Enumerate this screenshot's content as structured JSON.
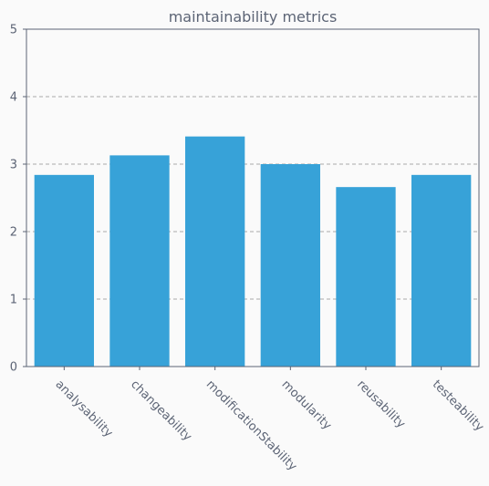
{
  "chart_data": {
    "type": "bar",
    "title": "maintainability metrics",
    "xlabel": "",
    "ylabel": "",
    "categories": [
      "analysability",
      "changeability",
      "modificationStability",
      "modularity",
      "reusability",
      "testeability"
    ],
    "values": [
      2.84,
      3.13,
      3.41,
      3.0,
      2.66,
      2.84
    ],
    "ylim": [
      0,
      5
    ],
    "yticks": [
      "0",
      "1",
      "2",
      "3",
      "4",
      "5"
    ],
    "grid": "horizontal-dashed",
    "legend": "none",
    "bar_color": "#37a2d8",
    "grid_color": "#a9a9a9",
    "axis_color": "#5c6475"
  }
}
